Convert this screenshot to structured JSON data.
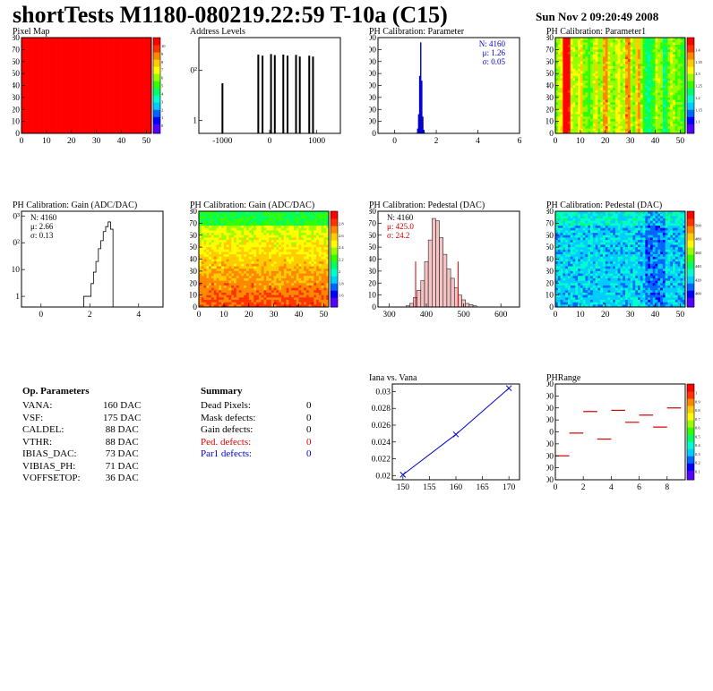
{
  "header": {
    "title": "shortTests M1180-080219.22:59 T-10a (C15)",
    "date": "Sun Nov  2 09:20:49 2008"
  },
  "palette_hex": [
    "#5500ff",
    "#0000ff",
    "#0066ff",
    "#00ccff",
    "#00ffcc",
    "#00ff66",
    "#33ff00",
    "#99ff00",
    "#ffff00",
    "#ffcc00",
    "#ff8800",
    "#ff3300",
    "#ff0000"
  ],
  "chart_data": [
    {
      "id": "pixel-map",
      "type": "heatmap",
      "title": "Pixel Map",
      "xticks": [
        "0",
        "10",
        "20",
        "30",
        "40",
        "50"
      ],
      "yticks": [
        "0",
        "10",
        "20",
        "30",
        "40",
        "50",
        "60",
        "70",
        "80"
      ],
      "zticks": [
        "0",
        "1",
        "2",
        "3",
        "4",
        "5",
        "6",
        "7",
        "8",
        "9",
        "10"
      ],
      "fill": "uniform",
      "value": 10,
      "xlim": [
        0,
        52
      ],
      "ylim": [
        0,
        80
      ],
      "zlim": [
        0,
        10
      ]
    },
    {
      "id": "address-levels",
      "type": "bar",
      "title": "Address Levels",
      "yscale": "log",
      "xticks": [
        "-1000",
        "0",
        "1000"
      ],
      "yticks": [
        "1",
        "10²"
      ],
      "xlim": [
        -1500,
        1500
      ],
      "ylim": [
        0.3,
        2000
      ],
      "x": [
        -1000,
        -240,
        -150,
        30,
        110,
        290,
        380,
        560,
        640,
        840,
        920
      ],
      "values": [
        30,
        420,
        380,
        440,
        400,
        420,
        380,
        410,
        350,
        380,
        350
      ]
    },
    {
      "id": "ph-cal-parameter",
      "type": "bar",
      "title": "PH Calibration: Parameter",
      "xticks": [
        "0",
        "2",
        "4",
        "6"
      ],
      "yticks": [
        "0",
        "100",
        "200",
        "300",
        "400",
        "500",
        "600",
        "700",
        "800"
      ],
      "xlim": [
        -0.8,
        6
      ],
      "ylim": [
        0,
        800
      ],
      "x": [
        1.05,
        1.1,
        1.15,
        1.2,
        1.25,
        1.3,
        1.35,
        1.4,
        1.45
      ],
      "values": [
        5,
        40,
        160,
        480,
        760,
        440,
        140,
        30,
        5
      ],
      "stats": {
        "n": "N: 4160",
        "mu": "μ: 1.26",
        "sigma": "σ: 0.05"
      }
    },
    {
      "id": "ph-cal-parameter1",
      "type": "heatmap",
      "title": "PH Calibration: Parameter1",
      "xticks": [
        "0",
        "10",
        "20",
        "30",
        "40",
        "50"
      ],
      "yticks": [
        "0",
        "10",
        "20",
        "30",
        "40",
        "50",
        "60",
        "70",
        "80"
      ],
      "zticks": [
        "1.1",
        "1.15",
        "1.2",
        "1.25",
        "1.3",
        "1.35",
        "1.4"
      ],
      "xlim": [
        0,
        52
      ],
      "ylim": [
        0,
        80
      ],
      "zlim": [
        1.05,
        1.45
      ],
      "column_levels": [
        0.55,
        0.62,
        0.68,
        0.98,
        0.97,
        0.96,
        0.62,
        0.6,
        0.58,
        0.65,
        0.72,
        0.56,
        0.55,
        0.5,
        0.55,
        0.6,
        0.68,
        0.55,
        0.58,
        0.78,
        0.8,
        0.6,
        0.58,
        0.55,
        0.62,
        0.66,
        0.58,
        0.62,
        0.8,
        0.82,
        0.6,
        0.55,
        0.72,
        0.78,
        0.58,
        0.5,
        0.42,
        0.4,
        0.45,
        0.5,
        0.6,
        0.58,
        0.55,
        0.42,
        0.48,
        0.55,
        0.6,
        0.58,
        0.52,
        0.55,
        0.5,
        0.48
      ]
    },
    {
      "id": "ph-cal-gain-hist",
      "type": "bar",
      "title": "PH Calibration: Gain (ADC/DAC)",
      "yscale": "log",
      "xticks": [
        "0",
        "2",
        "4"
      ],
      "yticks": [
        "1",
        "10",
        "10²",
        "10³"
      ],
      "xlim": [
        -0.8,
        5
      ],
      "ylim": [
        0.4,
        1500
      ],
      "x": [
        1.8,
        2.0,
        2.1,
        2.2,
        2.3,
        2.4,
        2.5,
        2.6,
        2.7,
        2.8,
        2.9
      ],
      "values": [
        1,
        1,
        3,
        8,
        20,
        60,
        120,
        260,
        400,
        600,
        320
      ],
      "stats": {
        "n": "N: 4160",
        "mu": "μ: 2.66",
        "sigma": "σ: 0.13"
      }
    },
    {
      "id": "ph-cal-gain-map",
      "type": "heatmap",
      "title": "PH Calibration: Gain (ADC/DAC)",
      "xticks": [
        "0",
        "10",
        "20",
        "30",
        "40",
        "50"
      ],
      "yticks": [
        "0",
        "10",
        "20",
        "30",
        "40",
        "50",
        "60",
        "70",
        "80"
      ],
      "zticks": [
        "1.6",
        "1.8",
        "2",
        "2.2",
        "2.4",
        "2.6",
        "2.8"
      ],
      "xlim": [
        0,
        52
      ],
      "ylim": [
        0,
        80
      ],
      "zlim": [
        1.5,
        2.9
      ],
      "pattern": "gain"
    },
    {
      "id": "ph-cal-pedestal-hist",
      "type": "bar",
      "title": "PH Calibration: Pedestal (DAC)",
      "xticks": [
        "300",
        "400",
        "500",
        "600"
      ],
      "yticks": [
        "0",
        "10",
        "20",
        "30",
        "40",
        "50",
        "60",
        "70",
        "80"
      ],
      "xlim": [
        270,
        650
      ],
      "ylim": [
        0,
        80
      ],
      "x": [
        350,
        360,
        370,
        380,
        390,
        400,
        410,
        420,
        430,
        440,
        450,
        460,
        470,
        480,
        490,
        500,
        510,
        520,
        530
      ],
      "values": [
        1,
        3,
        8,
        14,
        22,
        38,
        56,
        74,
        72,
        58,
        44,
        32,
        24,
        16,
        10,
        6,
        3,
        2,
        1
      ],
      "markers": [
        371,
        485
      ],
      "stats": {
        "n": "N: 4160",
        "mu": "μ: 425.0",
        "sigma": "σ: 24.2"
      }
    },
    {
      "id": "ph-cal-pedestal-map",
      "type": "heatmap",
      "title": "PH Calibration: Pedestal (DAC)",
      "xticks": [
        "0",
        "10",
        "20",
        "30",
        "40",
        "50"
      ],
      "yticks": [
        "0",
        "10",
        "20",
        "30",
        "40",
        "50",
        "60",
        "70",
        "80"
      ],
      "zticks": [
        "400",
        "420",
        "440",
        "460",
        "480",
        "500"
      ],
      "xlim": [
        0,
        52
      ],
      "ylim": [
        0,
        80
      ],
      "zlim": [
        380,
        520
      ],
      "pattern": "pedestal"
    },
    {
      "id": "iana-vs-vana",
      "type": "line",
      "title": "Iana vs. Vana",
      "xticks": [
        "150",
        "155",
        "160",
        "165",
        "170"
      ],
      "yticks": [
        "0.02",
        "0.022",
        "0.024",
        "0.026",
        "0.028",
        "0.03"
      ],
      "xlim": [
        148,
        172
      ],
      "ylim": [
        0.0195,
        0.0309
      ],
      "x": [
        150,
        160,
        170
      ],
      "y": [
        0.0201,
        0.0249,
        0.0304
      ]
    },
    {
      "id": "ph-range",
      "type": "heatmap",
      "title": "PHRange",
      "xticks": [
        "0",
        "2",
        "4",
        "6",
        "8"
      ],
      "yticks": [
        "-2000",
        "-1500",
        "-1000",
        "-500",
        "0",
        "500",
        "1000",
        "1500",
        "2000"
      ],
      "zticks": [
        "0.1",
        "0.2",
        "0.3",
        "0.4",
        "0.5",
        "0.6",
        "0.7",
        "0.8",
        "0.9",
        "1"
      ],
      "xlim": [
        0,
        9.3
      ],
      "ylim": [
        -2000,
        2000
      ],
      "zlim": [
        0,
        1
      ],
      "x": [
        0.5,
        1.5,
        2.5,
        3.5,
        4.5,
        5.5,
        6.5,
        7.5,
        8.5
      ],
      "y": [
        -1000,
        -50,
        850,
        -300,
        900,
        400,
        700,
        200,
        1000
      ]
    }
  ],
  "op_parameters": {
    "heading": "Op. Parameters",
    "rows": [
      {
        "name": "VANA:",
        "value": "160 DAC"
      },
      {
        "name": "VSF:",
        "value": "175 DAC"
      },
      {
        "name": "CALDEL:",
        "value": " 88 DAC"
      },
      {
        "name": "VTHR:",
        "value": " 88 DAC"
      },
      {
        "name": "IBIAS_DAC:",
        "value": " 73 DAC"
      },
      {
        "name": "VIBIAS_PH:",
        "value": " 71 DAC"
      },
      {
        "name": "VOFFSETOP:",
        "value": " 36 DAC"
      }
    ]
  },
  "summary": {
    "heading": "Summary",
    "rows": [
      {
        "name": "Dead Pixels:",
        "value": "0",
        "color": "black"
      },
      {
        "name": "Mask defects:",
        "value": "0",
        "color": "black"
      },
      {
        "name": "Gain defects:",
        "value": "0",
        "color": "black"
      },
      {
        "name": "Ped. defects:",
        "value": "0",
        "color": "red"
      },
      {
        "name": "Par1 defects:",
        "value": "0",
        "color": "blue"
      }
    ]
  }
}
